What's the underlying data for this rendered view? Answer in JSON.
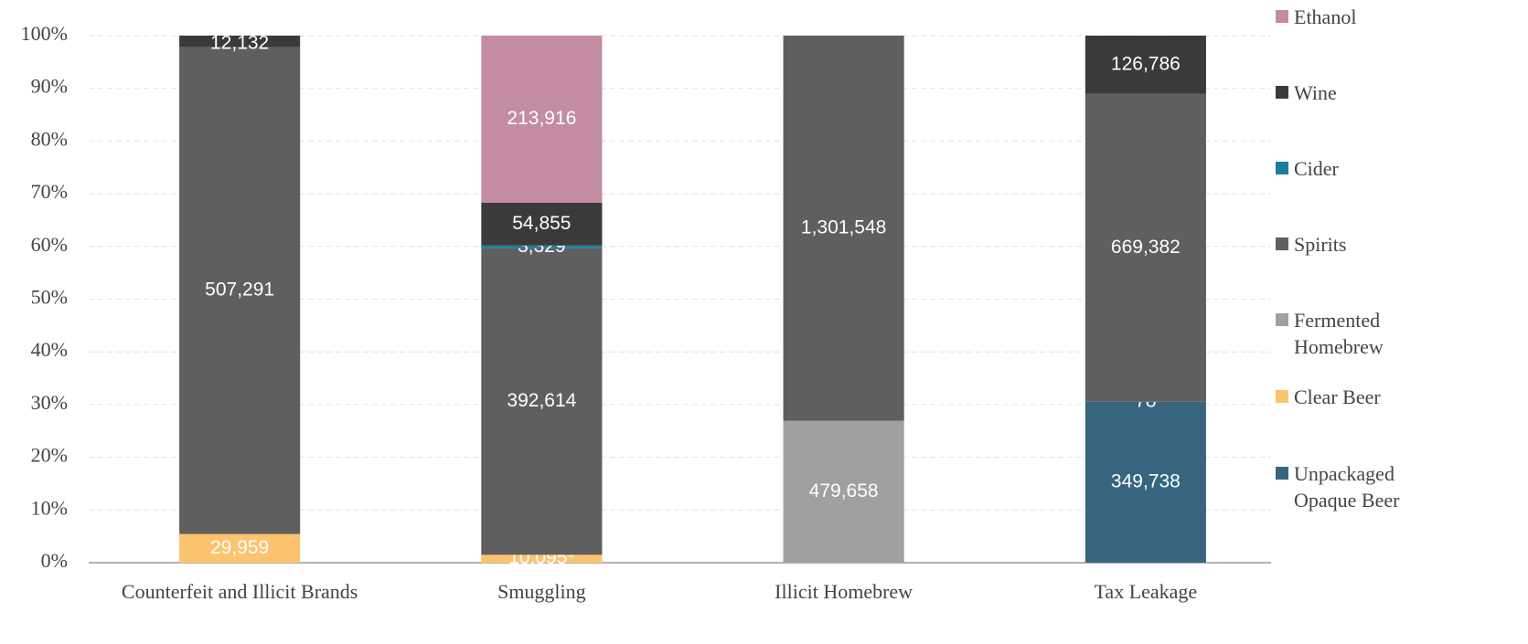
{
  "chart_data": {
    "type": "bar",
    "stacked": "percent",
    "categories": [
      "Counterfeit and Illicit Brands",
      "Smuggling",
      "Illicit Homebrew",
      "Tax Leakage"
    ],
    "series": [
      {
        "name": "Unpackaged Opaque Beer",
        "color": "#376580",
        "values": [
          null,
          null,
          null,
          349738
        ],
        "value_labels": [
          null,
          null,
          null,
          "349,738"
        ]
      },
      {
        "name": "Clear Beer",
        "color": "#fcc46f",
        "values": [
          29959,
          10095,
          null,
          78
        ],
        "value_labels": [
          "29,959",
          "10,095*",
          null,
          "78"
        ]
      },
      {
        "name": "Fermented Homebrew",
        "color": "#a0a0a0",
        "values": [
          null,
          null,
          479658,
          null
        ],
        "value_labels": [
          null,
          null,
          "479,658",
          null
        ]
      },
      {
        "name": "Spirits",
        "color": "#5f5f5f",
        "values": [
          507291,
          392614,
          1301548,
          669382
        ],
        "value_labels": [
          "507,291",
          "392,614",
          "1,301,548",
          "669,382"
        ]
      },
      {
        "name": "Cider",
        "color": "#17819b",
        "values": [
          null,
          3329,
          null,
          null
        ],
        "value_labels": [
          null,
          "3,329",
          null,
          null
        ]
      },
      {
        "name": "Wine",
        "color": "#3a3a3a",
        "values": [
          12132,
          54855,
          null,
          126786
        ],
        "value_labels": [
          "12,132",
          "54,855",
          null,
          "126,786"
        ]
      },
      {
        "name": "Ethanol",
        "color": "#c48ca3",
        "values": [
          null,
          213916,
          null,
          null
        ],
        "value_labels": [
          null,
          "213,916",
          null,
          null
        ]
      }
    ],
    "ylim": [
      0,
      100
    ],
    "yticks": [
      {
        "value": 0,
        "label": "0%"
      },
      {
        "value": 10,
        "label": "10%"
      },
      {
        "value": 20,
        "label": "20%"
      },
      {
        "value": 30,
        "label": "30%"
      },
      {
        "value": 40,
        "label": "40%"
      },
      {
        "value": 50,
        "label": "50%"
      },
      {
        "value": 60,
        "label": "60%"
      },
      {
        "value": 70,
        "label": "70%"
      },
      {
        "value": 80,
        "label": "80%"
      },
      {
        "value": 90,
        "label": "90%"
      },
      {
        "value": 100,
        "label": "100%"
      }
    ],
    "grid": true,
    "legend": "right"
  }
}
